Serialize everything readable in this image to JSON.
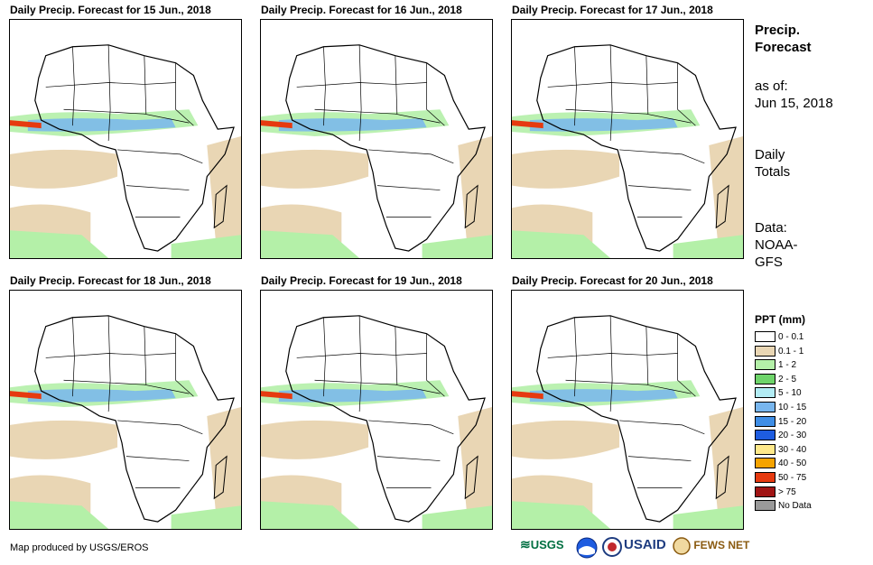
{
  "panels": [
    {
      "title": "Daily Precip. Forecast for 15 Jun., 2018"
    },
    {
      "title": "Daily Precip. Forecast for 16 Jun., 2018"
    },
    {
      "title": "Daily Precip. Forecast for 17 Jun., 2018"
    },
    {
      "title": "Daily Precip. Forecast for 18 Jun., 2018"
    },
    {
      "title": "Daily Precip. Forecast for 19 Jun., 2018"
    },
    {
      "title": "Daily Precip. Forecast for 20 Jun., 2018"
    }
  ],
  "side": {
    "heading_line1": "Precip.",
    "heading_line2": "Forecast",
    "asof_line1": "as of:",
    "asof_line2": "Jun 15, 2018",
    "totals_line1": "Daily",
    "totals_line2": "Totals",
    "data_line1": "Data:",
    "data_line2": "NOAA-",
    "data_line3": "GFS"
  },
  "legend": {
    "title": "PPT (mm)",
    "items": [
      {
        "label": "0 - 0.1",
        "color": "#ffffff"
      },
      {
        "label": "0.1 - 1",
        "color": "#e9d6b4"
      },
      {
        "label": "1 - 2",
        "color": "#b4f0a8"
      },
      {
        "label": "2 - 5",
        "color": "#6ed46a"
      },
      {
        "label": "5 - 10",
        "color": "#b2ecf4"
      },
      {
        "label": "10 - 15",
        "color": "#78b6ee"
      },
      {
        "label": "15 - 20",
        "color": "#3f8ee6"
      },
      {
        "label": "20 - 30",
        "color": "#1e5ce0"
      },
      {
        "label": "30 - 40",
        "color": "#ffe98a"
      },
      {
        "label": "40 - 50",
        "color": "#f5a300"
      },
      {
        "label": "50 - 75",
        "color": "#e63a10"
      },
      {
        "label": "> 75",
        "color": "#a01414"
      },
      {
        "label": "No Data",
        "color": "#9a9a9a"
      }
    ]
  },
  "footer": {
    "credit": "Map produced by USGS/EROS",
    "logo_usgs": "USGS",
    "logo_noaa": "NOAA",
    "logo_usaid": "USAID",
    "logo_fewsnet": "FEWS NET"
  },
  "colors": {
    "land_outline": "#000000",
    "light_precip": "#e9d6b4",
    "moderate": "#b4f0a8",
    "blue": "#78b6ee",
    "heavy": "#e63a10"
  }
}
